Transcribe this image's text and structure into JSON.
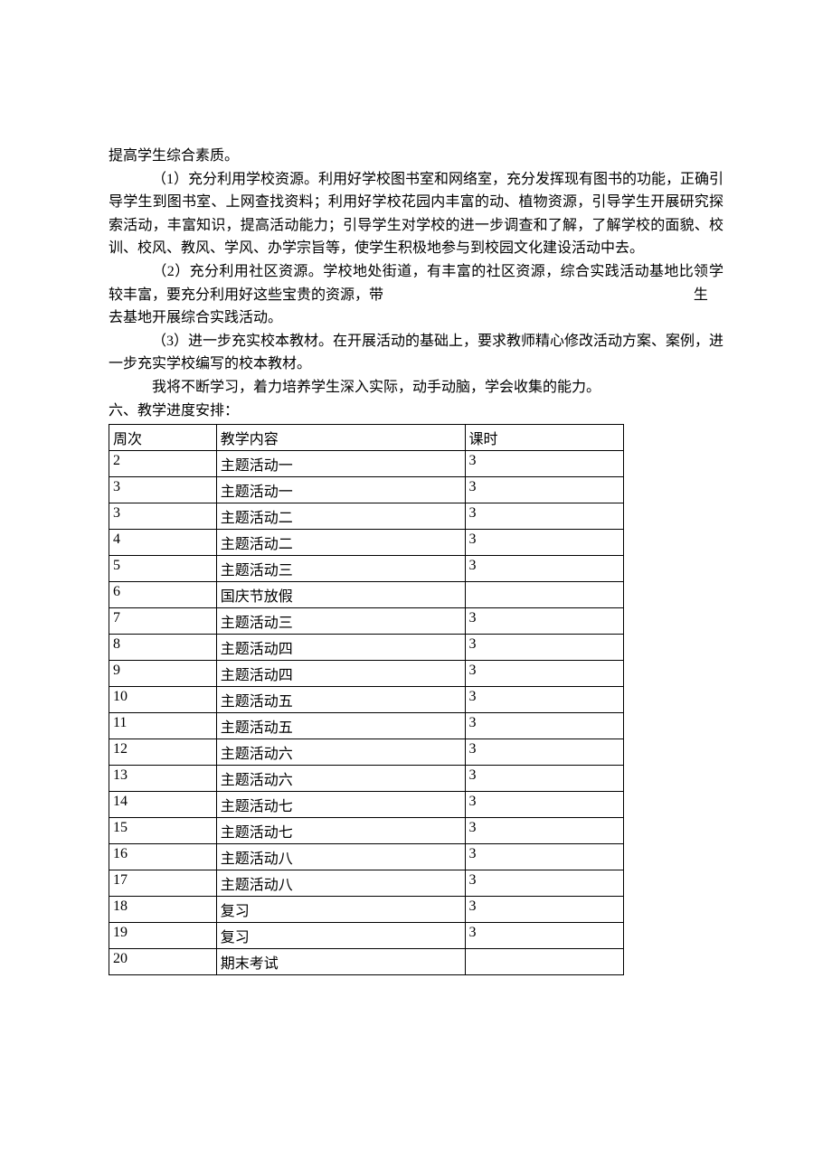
{
  "paragraphs": {
    "p0": "提高学生综合素质。",
    "p1": "（1）充分利用学校资源。利用好学校图书室和网络室，充分发挥现有图书的功能，正确引导学生到图书室、上网查找资料；利用好学校花园内丰富的动、植物资源，引导学生开展研究探索活动，丰富知识，提高活动能力；引导学生对学校的进一步调查和了解，了解学校的面貌、校训、校风、教风、学风、办学宗旨等，使学生积极地参与到校园文化建设活动中去。",
    "p2_left": "（2）充分利用社区资源。学校地处街道，有丰富的社区资源，综合实践活动基地比较丰富，要充分利用好这些宝贵的资源，带",
    "p2_right": "领学生",
    "p2_cont": "去基地开展综合实践活动。",
    "p3": "（3）进一步充实校本教材。在开展活动的基础上，要求教师精心修改活动方案、案例，进一步充实学校编写的校本教材。",
    "p4": "我将不断学习，着力培养学生深入实际，动手动脑，学会收集的能力。",
    "heading": "六、教学进度安排："
  },
  "table": {
    "header": {
      "c1": "周次",
      "c2": "教学内容",
      "c3": "课时"
    },
    "rows": [
      {
        "c1": "2",
        "c2": "主题活动一",
        "c3": "3"
      },
      {
        "c1": "3",
        "c2": "主题活动一",
        "c3": "3"
      },
      {
        "c1": "3",
        "c2": "主题活动二",
        "c3": "3"
      },
      {
        "c1": "4",
        "c2": "主题活动二",
        "c3": "3"
      },
      {
        "c1": "5",
        "c2": "主题活动三",
        "c3": "3"
      },
      {
        "c1": "6",
        "c2": "国庆节放假",
        "c3": ""
      },
      {
        "c1": "7",
        "c2": "主题活动三",
        "c3": "3"
      },
      {
        "c1": "8",
        "c2": "主题活动四",
        "c3": "3"
      },
      {
        "c1": "9",
        "c2": "主题活动四",
        "c3": "3"
      },
      {
        "c1": "10",
        "c2": "主题活动五",
        "c3": "3"
      },
      {
        "c1": "11",
        "c2": "主题活动五",
        "c3": "3"
      },
      {
        "c1": "12",
        "c2": "主题活动六",
        "c3": "3"
      },
      {
        "c1": "13",
        "c2": "主题活动六",
        "c3": "3"
      },
      {
        "c1": "14",
        "c2": "主题活动七",
        "c3": "3"
      },
      {
        "c1": "15",
        "c2": "主题活动七",
        "c3": "3"
      },
      {
        "c1": "16",
        "c2": "主题活动八",
        "c3": "3"
      },
      {
        "c1": "17",
        "c2": "主题活动八",
        "c3": "3"
      },
      {
        "c1": "18",
        "c2": "复习",
        "c3": "3"
      },
      {
        "c1": "19",
        "c2": "复习",
        "c3": "3"
      },
      {
        "c1": "20",
        "c2": "期末考试",
        "c3": ""
      }
    ]
  }
}
